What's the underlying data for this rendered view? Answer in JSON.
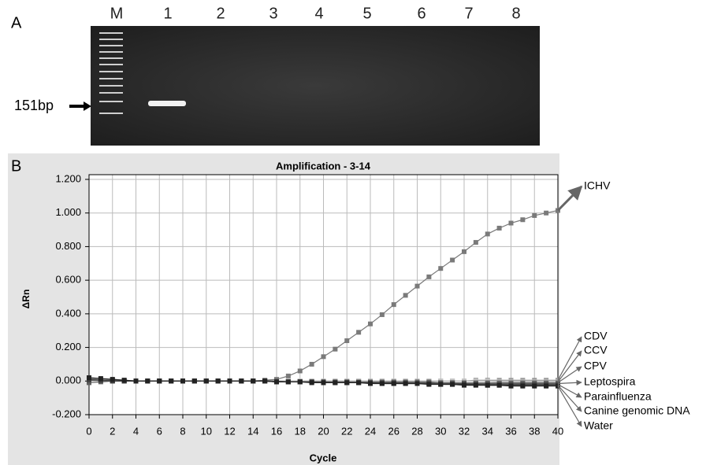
{
  "panel_labels": [
    "A",
    "B"
  ],
  "gel": {
    "lanes": [
      "M",
      "1",
      "2",
      "3",
      "4",
      "5",
      "6",
      "7",
      "8"
    ],
    "marker_label": "151bp"
  },
  "chart_data": {
    "type": "line",
    "title": "Amplification - 3-14",
    "x_label": "Cycle",
    "y_label": "ΔRn",
    "x": [
      0,
      1,
      2,
      3,
      4,
      5,
      6,
      7,
      8,
      9,
      10,
      11,
      12,
      13,
      14,
      15,
      16,
      17,
      18,
      19,
      20,
      21,
      22,
      23,
      24,
      25,
      26,
      27,
      28,
      29,
      30,
      31,
      32,
      33,
      34,
      35,
      36,
      37,
      38,
      39,
      40
    ],
    "xlim": [
      0,
      40
    ],
    "xticks": [
      0,
      2,
      4,
      6,
      8,
      10,
      12,
      14,
      16,
      18,
      20,
      22,
      24,
      26,
      28,
      30,
      32,
      34,
      36,
      38,
      40
    ],
    "ylim": [
      -0.2,
      1.2
    ],
    "yticks": [
      {
        "value": -0.2,
        "label": "-0.200"
      },
      {
        "value": 0,
        "label": "0.000"
      },
      {
        "value": 0.2,
        "label": "0.200"
      },
      {
        "value": 0.4,
        "label": "0.400"
      },
      {
        "value": 0.6,
        "label": "0.600"
      },
      {
        "value": 0.8,
        "label": "0.800"
      },
      {
        "value": 1,
        "label": "1.000"
      },
      {
        "value": 1.2,
        "label": "1.200"
      }
    ],
    "grid": true,
    "series": [
      {
        "name": "ICHV",
        "color": "#7a7a7a",
        "values": [
          0.01,
          0.01,
          0.005,
          0.005,
          0,
          0,
          0,
          0,
          0,
          0,
          0,
          0,
          0,
          0,
          0,
          0.005,
          0.01,
          0.03,
          0.06,
          0.1,
          0.145,
          0.19,
          0.24,
          0.29,
          0.34,
          0.395,
          0.455,
          0.51,
          0.565,
          0.62,
          0.67,
          0.72,
          0.77,
          0.825,
          0.875,
          0.91,
          0.94,
          0.96,
          0.985,
          1.0,
          1.015
        ]
      },
      {
        "name": "CDV",
        "color": "#9a9a9a",
        "values": [
          0.015,
          0.01,
          0.01,
          0.005,
          0,
          0,
          0,
          0,
          0,
          0,
          0,
          0,
          0,
          0,
          0,
          0,
          0,
          0,
          0,
          0,
          0,
          0,
          0,
          0,
          0,
          0,
          0,
          0,
          0,
          0,
          0,
          0,
          0,
          0.005,
          0.005,
          0.005,
          0.005,
          0.005,
          0.005,
          0.005,
          0.005
        ]
      },
      {
        "name": "CCV",
        "color": "#c4c4c4",
        "values": [
          0.01,
          0.005,
          0.005,
          0,
          0,
          0,
          0,
          0,
          0,
          0,
          0,
          0,
          0,
          0,
          0,
          0,
          0,
          0,
          0,
          0,
          0,
          0,
          0,
          0,
          0,
          0,
          0,
          0,
          0,
          0,
          0,
          0,
          0,
          0,
          0,
          -0.005,
          -0.005,
          -0.005,
          -0.005,
          -0.005,
          -0.005
        ]
      },
      {
        "name": "CPV",
        "color": "#6e6e6e",
        "values": [
          0.01,
          0.005,
          0.005,
          0,
          0,
          0,
          0,
          0,
          0,
          0,
          0,
          0,
          0,
          0,
          0,
          0,
          0,
          -0.005,
          -0.005,
          -0.005,
          -0.005,
          -0.005,
          -0.005,
          -0.005,
          -0.005,
          -0.005,
          -0.005,
          -0.005,
          -0.005,
          -0.005,
          -0.01,
          -0.01,
          -0.01,
          -0.01,
          -0.01,
          -0.01,
          -0.01,
          -0.01,
          -0.01,
          -0.01,
          -0.01
        ]
      },
      {
        "name": "Leptospira",
        "color": "#5e5e5e",
        "values": [
          -0.01,
          -0.005,
          0,
          0,
          0,
          0,
          0,
          0,
          0,
          0,
          0,
          0,
          0,
          0,
          0,
          0,
          0,
          -0.005,
          -0.005,
          -0.005,
          -0.005,
          -0.005,
          -0.005,
          -0.01,
          -0.01,
          -0.01,
          -0.01,
          -0.01,
          -0.01,
          -0.01,
          -0.01,
          -0.01,
          -0.015,
          -0.015,
          -0.015,
          -0.015,
          -0.015,
          -0.015,
          -0.015,
          -0.015,
          -0.015
        ]
      },
      {
        "name": "Parainfluenza",
        "color": "#4e4e4e",
        "values": [
          0.005,
          0.005,
          0,
          0,
          0,
          0,
          0,
          0,
          0,
          0,
          0,
          0,
          0,
          0,
          0,
          0,
          -0.005,
          -0.005,
          -0.005,
          -0.005,
          -0.005,
          -0.01,
          -0.01,
          -0.01,
          -0.01,
          -0.01,
          -0.01,
          -0.01,
          -0.015,
          -0.015,
          -0.015,
          -0.015,
          -0.015,
          -0.02,
          -0.02,
          -0.02,
          -0.02,
          -0.02,
          -0.02,
          -0.02,
          -0.02
        ]
      },
      {
        "name": "Canine genomic DNA",
        "color": "#3c3c3c",
        "values": [
          0.01,
          0.005,
          0,
          0,
          0,
          0,
          0,
          0,
          0,
          0,
          0,
          0,
          0,
          0,
          0,
          0,
          -0.005,
          -0.005,
          -0.005,
          -0.005,
          -0.01,
          -0.01,
          -0.01,
          -0.01,
          -0.01,
          -0.015,
          -0.015,
          -0.015,
          -0.015,
          -0.015,
          -0.02,
          -0.02,
          -0.02,
          -0.02,
          -0.025,
          -0.025,
          -0.025,
          -0.025,
          -0.025,
          -0.025,
          -0.025
        ]
      },
      {
        "name": "Water",
        "color": "#222222",
        "values": [
          0.02,
          0.015,
          0.01,
          0.005,
          0,
          0,
          0,
          0,
          0,
          0,
          0,
          0,
          0,
          0,
          0,
          0,
          -0.005,
          -0.005,
          -0.005,
          -0.01,
          -0.01,
          -0.01,
          -0.01,
          -0.01,
          -0.015,
          -0.015,
          -0.015,
          -0.015,
          -0.015,
          -0.02,
          -0.02,
          -0.02,
          -0.025,
          -0.025,
          -0.025,
          -0.025,
          -0.03,
          -0.03,
          -0.03,
          -0.03,
          -0.03
        ]
      }
    ]
  }
}
